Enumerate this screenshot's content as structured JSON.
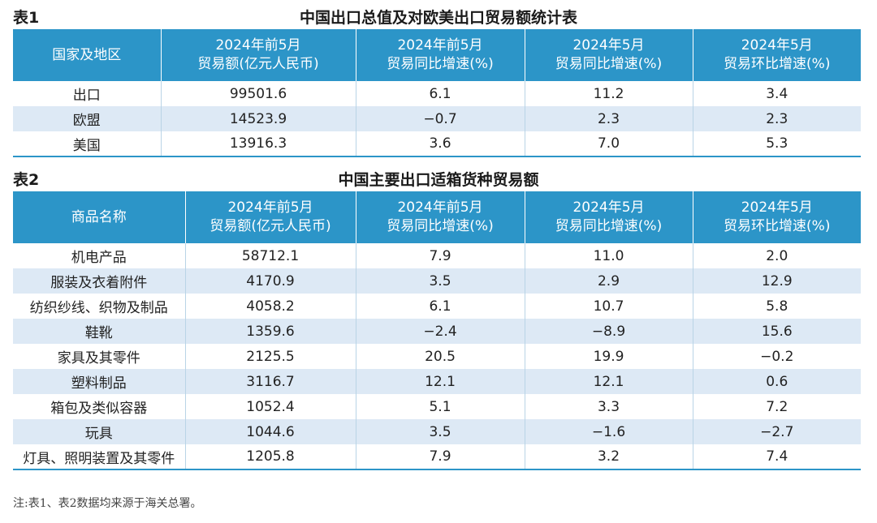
{
  "table1": {
    "label": "表1",
    "title": "中国出口总值及对欧美出口贸易额统计表",
    "headers": [
      {
        "line1": "国家及地区",
        "line2": ""
      },
      {
        "line1": "2024年前5月",
        "line2": "贸易额(亿元人民币)"
      },
      {
        "line1": "2024年前5月",
        "line2": "贸易同比增速(%)"
      },
      {
        "line1": "2024年5月",
        "line2": "贸易同比增速(%)"
      },
      {
        "line1": "2024年5月",
        "line2": "贸易环比增速(%)"
      }
    ],
    "rows": [
      [
        "出口",
        "99501.6",
        "6.1",
        "11.2",
        "3.4"
      ],
      [
        "欧盟",
        "14523.9",
        "−0.7",
        "2.3",
        "2.3"
      ],
      [
        "美国",
        "13916.3",
        "3.6",
        "7.0",
        "5.3"
      ]
    ]
  },
  "table2": {
    "label": "表2",
    "title": "中国主要出口适箱货种贸易额",
    "headers": [
      {
        "line1": "商品名称",
        "line2": ""
      },
      {
        "line1": "2024年前5月",
        "line2": "贸易额(亿元人民币)"
      },
      {
        "line1": "2024年前5月",
        "line2": "贸易同比增速(%)"
      },
      {
        "line1": "2024年5月",
        "line2": "贸易同比增速(%)"
      },
      {
        "line1": "2024年5月",
        "line2": "贸易环比增速(%)"
      }
    ],
    "rows": [
      [
        "机电产品",
        "58712.1",
        "7.9",
        "11.0",
        "2.0"
      ],
      [
        "服装及衣着附件",
        "4170.9",
        "3.5",
        "2.9",
        "12.9"
      ],
      [
        "纺织纱线、织物及制品",
        "4058.2",
        "6.1",
        "10.7",
        "5.8"
      ],
      [
        "鞋靴",
        "1359.6",
        "−2.4",
        "−8.9",
        "15.6"
      ],
      [
        "家具及其零件",
        "2125.5",
        "20.5",
        "19.9",
        "−0.2"
      ],
      [
        "塑料制品",
        "3116.7",
        "12.1",
        "12.1",
        "0.6"
      ],
      [
        "箱包及类似容器",
        "1052.4",
        "5.1",
        "3.3",
        "7.2"
      ],
      [
        "玩具",
        "1044.6",
        "3.5",
        "−1.6",
        "−2.7"
      ],
      [
        "灯具、照明装置及其零件",
        "1205.8",
        "7.9",
        "3.2",
        "7.4"
      ]
    ]
  },
  "note": "注:表1、表2数据均来源于海关总署。"
}
